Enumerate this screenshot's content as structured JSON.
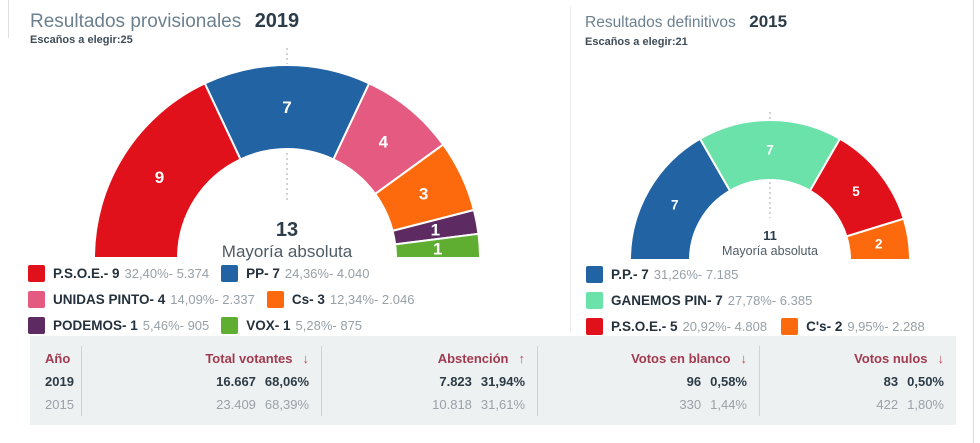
{
  "chart_data": [
    {
      "type": "pie",
      "variant": "half-donut",
      "title": "Resultados provisionales",
      "year": "2019",
      "seats_note": "Escaños a elegir:25",
      "total_seats": 25,
      "majority_value": "13",
      "majority_label": "Mayoría absoluta",
      "legend_position": "bottom",
      "segments": [
        {
          "party": "P.S.O.E.",
          "label": "P.S.O.E.- 9",
          "seats": 9,
          "pct": "32,40%",
          "votes": "5.374",
          "detail": "32,40%- 5.374",
          "color": "#e0111a"
        },
        {
          "party": "PP",
          "label": "PP- 7",
          "seats": 7,
          "pct": "24,36%",
          "votes": "4.040",
          "detail": "24,36%- 4.040",
          "color": "#2263a4"
        },
        {
          "party": "UNIDAS PINTO",
          "label": "UNIDAS PINTO- 4",
          "seats": 4,
          "pct": "14,09%",
          "votes": "2.337",
          "detail": "14,09%- 2.337",
          "color": "#e55a80"
        },
        {
          "party": "Cs",
          "label": "Cs- 3",
          "seats": 3,
          "pct": "12,34%",
          "votes": "2.046",
          "detail": "12,34%- 2.046",
          "color": "#fd6a0e"
        },
        {
          "party": "PODEMOS",
          "label": "PODEMOS- 1",
          "seats": 1,
          "pct": "5,46%",
          "votes": "905",
          "detail": "5,46%- 905",
          "color": "#5e2a62"
        },
        {
          "party": "VOX",
          "label": "VOX- 1",
          "seats": 1,
          "pct": "5,28%",
          "votes": "875",
          "detail": "5,28%- 875",
          "color": "#5fae32"
        }
      ]
    },
    {
      "type": "pie",
      "variant": "half-donut",
      "title": "Resultados definitivos",
      "year": "2015",
      "seats_note": "Escaños a elegir:21",
      "total_seats": 21,
      "majority_value": "11",
      "majority_label": "Mayoría absoluta",
      "legend_position": "bottom",
      "segments": [
        {
          "party": "P.P.",
          "label": "P.P.- 7",
          "seats": 7,
          "pct": "31,26%",
          "votes": "7.185",
          "detail": "31,26%- 7.185",
          "color": "#2263a4"
        },
        {
          "party": "GANEMOS PIN",
          "label": "GANEMOS PIN- 7",
          "seats": 7,
          "pct": "27,78%",
          "votes": "6.385",
          "detail": "27,78%- 6.385",
          "color": "#6ce2ab"
        },
        {
          "party": "P.S.O.E.",
          "label": "P.S.O.E.- 5",
          "seats": 5,
          "pct": "20,92%",
          "votes": "4.808",
          "detail": "20,92%- 4.808",
          "color": "#e0111a"
        },
        {
          "party": "C's",
          "label": "C's- 2",
          "seats": 2,
          "pct": "9,95%",
          "votes": "2.288",
          "detail": "9,95%- 2.288",
          "color": "#fd6a0e"
        }
      ]
    }
  ],
  "table": {
    "headers": [
      {
        "label": "Año",
        "arrow": ""
      },
      {
        "label": "Total votantes",
        "arrow": "↓"
      },
      {
        "label": "Abstención",
        "arrow": "↑"
      },
      {
        "label": "Votos en blanco",
        "arrow": "↓"
      },
      {
        "label": "Votos nulos",
        "arrow": "↓"
      }
    ],
    "rows": [
      {
        "year": "2019",
        "cells": [
          {
            "value": "16.667",
            "pct": "68,06%"
          },
          {
            "value": "7.823",
            "pct": "31,94%"
          },
          {
            "value": "96",
            "pct": "0,58%"
          },
          {
            "value": "83",
            "pct": "0,50%"
          }
        ]
      },
      {
        "year": "2015",
        "cells": [
          {
            "value": "23.409",
            "pct": "68,39%"
          },
          {
            "value": "10.818",
            "pct": "31,61%"
          },
          {
            "value": "330",
            "pct": "1,44%"
          },
          {
            "value": "422",
            "pct": "1,80%"
          }
        ]
      }
    ]
  }
}
